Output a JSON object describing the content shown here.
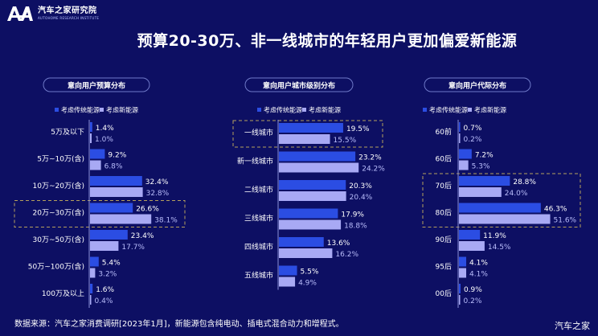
{
  "logo": {
    "cn": "汽车之家研究院",
    "en": "AUTOHOME RESEARCH INSTITUTE"
  },
  "title": "预算20-30万、非一线城市的年轻用户更加偏爱新能源",
  "footer": "数据来源：汽车之家消费调研[2023年1月]，新能源包含纯电动、插电式混合动力和增程式。",
  "brand": "汽车之家",
  "colors": {
    "background": "#0d0f63",
    "traditional": "#2b4de3",
    "new_energy": "#a8a9f4",
    "highlight_border": "#b5a05d"
  },
  "chart_data": [
    {
      "type": "bar",
      "orientation": "horizontal",
      "title": "意向用户预算分布",
      "categories": [
        "5万及以下",
        "5万~10万(含)",
        "10万~20万(含)",
        "20万~30万(含)",
        "30万~50万(含)",
        "50万~100万(含)",
        "100万及以上"
      ],
      "series": [
        {
          "name": "考虑传统能源",
          "values": [
            1.4,
            9.2,
            32.4,
            26.6,
            23.4,
            5.4,
            1.6
          ],
          "labels": [
            "1.4%",
            "9.2%",
            "32.4%",
            "26.6%",
            "23.4%",
            "5.4%",
            "1.6%"
          ]
        },
        {
          "name": "考虑新能源",
          "values": [
            1.0,
            6.8,
            32.8,
            38.1,
            17.7,
            3.2,
            0.4
          ],
          "labels": [
            "1.0%",
            "6.8%",
            "32.8%",
            "38.1%",
            "17.7%",
            "3.2%",
            "0.4%"
          ]
        }
      ],
      "highlight": [
        "20万~30万(含)"
      ],
      "legend": "top"
    },
    {
      "type": "bar",
      "orientation": "horizontal",
      "title": "意向用户城市级别分布",
      "categories": [
        "一线城市",
        "新一线城市",
        "二线城市",
        "三线城市",
        "四线城市",
        "五线城市"
      ],
      "series": [
        {
          "name": "考虑传统能源",
          "values": [
            19.5,
            23.2,
            20.3,
            17.9,
            13.6,
            5.5
          ],
          "labels": [
            "19.5%",
            "23.2%",
            "20.3%",
            "17.9%",
            "13.6%",
            "5.5%"
          ]
        },
        {
          "name": "考虑新能源",
          "values": [
            15.5,
            24.2,
            20.4,
            18.8,
            16.2,
            4.9
          ],
          "labels": [
            "15.5%",
            "24.2%",
            "20.4%",
            "18.8%",
            "16.2%",
            "4.9%"
          ]
        }
      ],
      "highlight": [
        "一线城市"
      ],
      "legend": "top"
    },
    {
      "type": "bar",
      "orientation": "horizontal",
      "title": "意向用户代际分布",
      "categories": [
        "60前",
        "60后",
        "70后",
        "80后",
        "90后",
        "95后",
        "00后"
      ],
      "series": [
        {
          "name": "考虑传统能源",
          "values": [
            0.7,
            7.2,
            28.8,
            46.3,
            11.9,
            4.1,
            0.9
          ],
          "labels": [
            "0.7%",
            "7.2%",
            "28.8%",
            "46.3%",
            "11.9%",
            "4.1%",
            "0.9%"
          ]
        },
        {
          "name": "考虑新能源",
          "values": [
            0.2,
            5.3,
            24.0,
            51.6,
            14.5,
            4.1,
            0.2
          ],
          "labels": [
            "0.2%",
            "5.3%",
            "24.0%",
            "51.6%",
            "14.5%",
            "4.1%",
            "0.2%"
          ]
        }
      ],
      "highlight": [
        "70后",
        "80后"
      ],
      "legend": "top"
    }
  ]
}
